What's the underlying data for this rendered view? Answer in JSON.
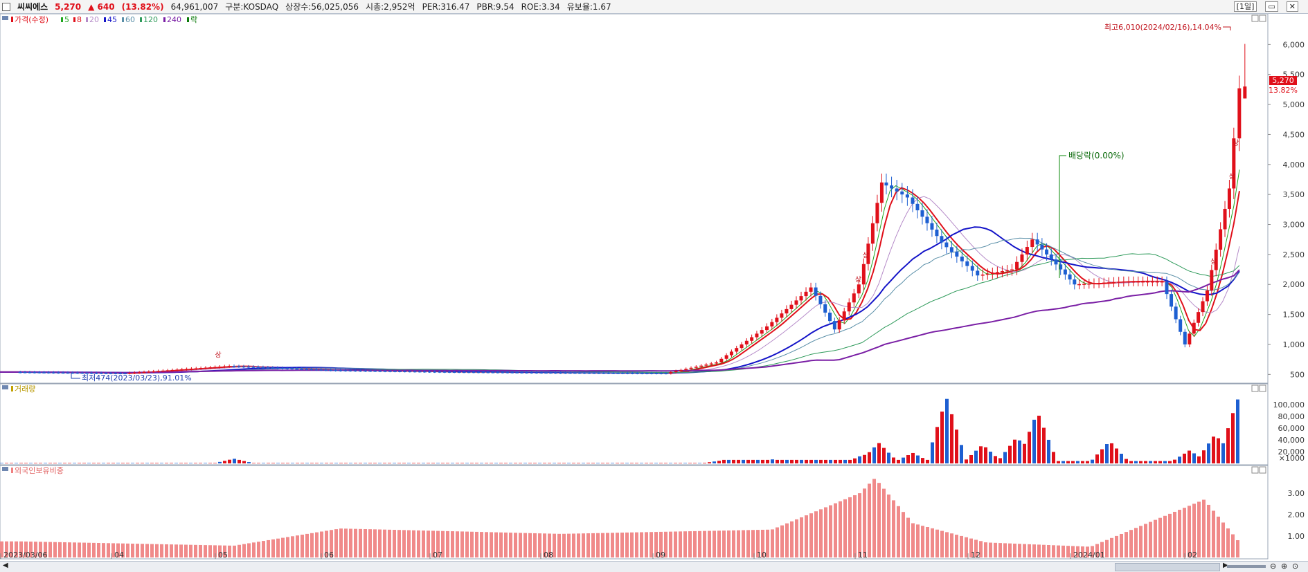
{
  "header": {
    "stock_name": "씨씨에스",
    "price": "5,270",
    "change": "▲ 640",
    "change_pct": "(13.82%)",
    "volume": "64,961,007",
    "market": "구분:KOSDAQ",
    "shares": "상장수:56,025,056",
    "market_cap": "시총:2,952억",
    "per": "PER:316.47",
    "pbr": "PBR:9.54",
    "roe": "ROE:3.34",
    "float_ratio": "유보율:1.67",
    "period_button": "[1일]",
    "colors": {
      "up": "#e0101a",
      "down": "#1d5fd1"
    }
  },
  "price_panel": {
    "legend_title": "가격(수정)",
    "ma_legend": [
      {
        "label": "5",
        "color": "#1fa51f"
      },
      {
        "label": "8",
        "color": "#e0101a"
      },
      {
        "label": "20",
        "color": "#b58ac8"
      },
      {
        "label": "45",
        "color": "#1414c8"
      },
      {
        "label": "60",
        "color": "#5a8fa8"
      },
      {
        "label": "120",
        "color": "#2e9a5a"
      },
      {
        "label": "240",
        "color": "#7a1fa5"
      },
      {
        "label": "락",
        "color": "#0a7a0a"
      }
    ],
    "high_annotation": "최고6,010(2024/02/16),14.04%",
    "low_annotation": "최저474(2023/03/23),91.01%",
    "dividend_annotation": "배당락(0.00%)",
    "current_price_tag": "5,270",
    "current_pct_tag": "13.82%",
    "limit_up_mark": "상",
    "limit_down_mark": "하"
  },
  "volume_panel": {
    "title": "거래량",
    "unit_tick": "×1000"
  },
  "foreign_panel": {
    "title": "외국인보유비중"
  },
  "x_labels": [
    "2023/03/06",
    "04",
    "05",
    "06",
    "07",
    "08",
    "09",
    "10",
    "11",
    "12",
    "2024/01",
    "02"
  ],
  "chart_data": [
    {
      "type": "line",
      "title": "가격(수정)",
      "x": [
        "2023/03",
        "2023/04",
        "2023/05",
        "2023/06",
        "2023/07",
        "2023/08",
        "2023/09",
        "2023/09/20",
        "2023/10/05",
        "2023/10/18",
        "2023/10/25",
        "2023/11/02",
        "2023/11/08",
        "2023/11/15",
        "2023/11/24",
        "2023/12/04",
        "2023/12/14",
        "2023/12/20",
        "2024/01/02",
        "2024/01/15",
        "2024/01/25",
        "2024/02/01",
        "2024/02/07",
        "2024/02/13",
        "2024/02/16"
      ],
      "series": [
        {
          "name": "가격(수정)",
          "values": [
            540,
            520,
            640,
            570,
            545,
            530,
            520,
            700,
            1300,
            1950,
            1250,
            2000,
            3700,
            3450,
            2700,
            2150,
            2250,
            2750,
            2000,
            2050,
            2050,
            1000,
            1900,
            3600,
            5270
          ]
        }
      ],
      "ylim": [
        400,
        6200
      ],
      "y_ticks": [
        500,
        1000,
        1500,
        2000,
        2500,
        3000,
        3500,
        4000,
        4500,
        5000,
        5500,
        6000
      ]
    },
    {
      "type": "bar",
      "title": "거래량",
      "x": [
        "2023/05",
        "2023/09/20",
        "2023/10",
        "2023/11/02",
        "2023/11/06",
        "2023/11/15",
        "2023/11/24",
        "2023/12/04",
        "2023/12/14",
        "2023/12/20",
        "2024/01/10",
        "2024/02/01",
        "2024/02/08",
        "2024/02/14",
        "2024/02/16"
      ],
      "values": [
        8000,
        5000,
        7000,
        15000,
        35000,
        18000,
        112000,
        32000,
        45000,
        88000,
        38000,
        22000,
        50000,
        110000,
        62000
      ],
      "ylim": [
        0,
        120000
      ],
      "y_ticks": [
        20000,
        40000,
        60000,
        80000,
        100000
      ]
    },
    {
      "type": "bar",
      "title": "외국인보유비중",
      "x": [
        "2023/03",
        "2023/05",
        "2023/06",
        "2023/08",
        "2023/10",
        "2023/11/01",
        "2023/11/05",
        "2023/11/15",
        "2023/12",
        "2024/01",
        "2024/02/05",
        "2024/02/16"
      ],
      "values": [
        0.75,
        0.55,
        1.35,
        1.1,
        1.3,
        3.0,
        3.7,
        1.6,
        0.7,
        0.5,
        2.7,
        0.4
      ],
      "ylim": [
        0,
        3.9
      ],
      "y_ticks": [
        1.0,
        2.0,
        3.0
      ]
    }
  ]
}
